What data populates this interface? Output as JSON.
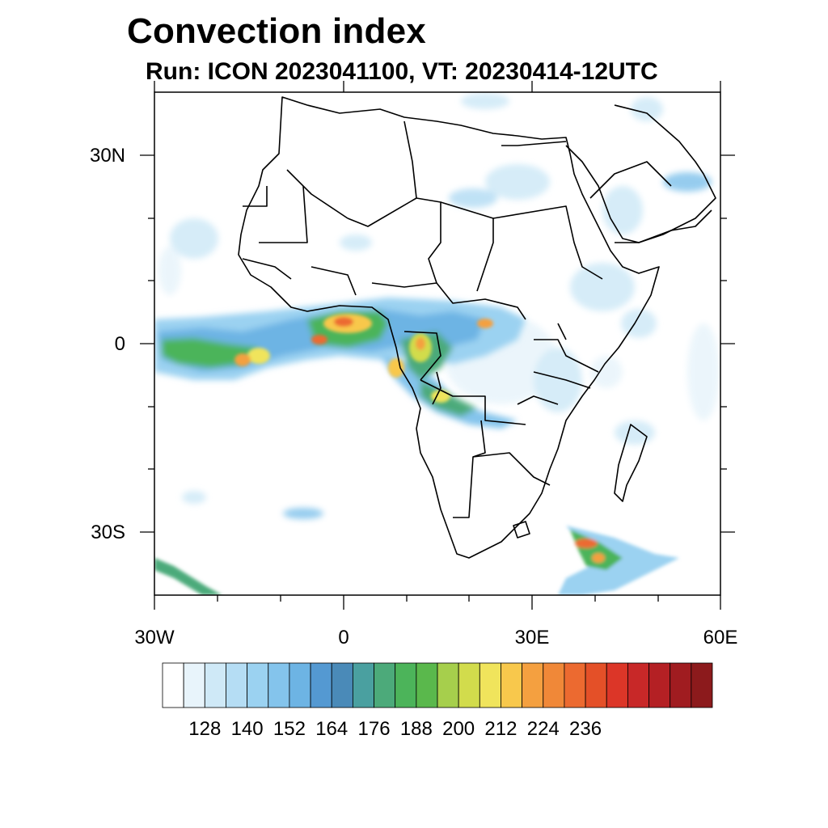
{
  "title": "Convection index",
  "subtitle": "Run: ICON 2023041100,  VT: 20230414-12UTC",
  "map": {
    "region": "Africa and surrounding oceans",
    "lon_range": [
      -30,
      60
    ],
    "lat_range": [
      -40,
      40
    ],
    "y_tick_labels": [
      "30N",
      "0",
      "30S"
    ],
    "x_tick_labels": [
      "30W",
      "0",
      "30E",
      "60E"
    ]
  },
  "colorbar": {
    "labels": [
      "128",
      "140",
      "152",
      "164",
      "176",
      "188",
      "200",
      "212",
      "224",
      "236"
    ],
    "colors": [
      "#ffffff",
      "#e8f4fb",
      "#cfe9f7",
      "#b5ddf4",
      "#9bd2f1",
      "#84c4ec",
      "#6db4e4",
      "#5499d2",
      "#4a8ab8",
      "#4aa0a0",
      "#4caa7a",
      "#4cb45a",
      "#5ab84c",
      "#a6cf4c",
      "#d2dc4c",
      "#f0e45c",
      "#f8c84c",
      "#f4a040",
      "#f08838",
      "#ec6a30",
      "#e45028",
      "#dc3628",
      "#c82828",
      "#b42024",
      "#a01c20",
      "#8c1a1c"
    ]
  }
}
